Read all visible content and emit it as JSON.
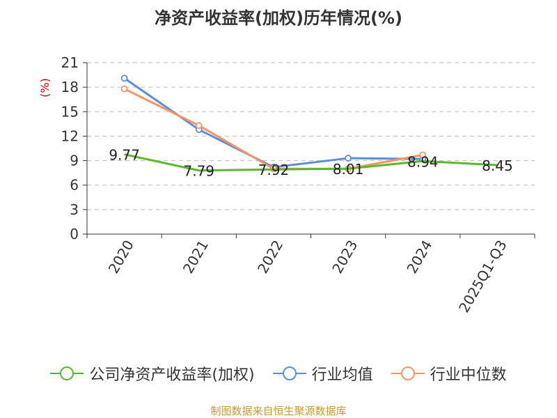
{
  "source_note": "制图数据来自恒生聚源数据库",
  "colors": {
    "company": "#5ab82a",
    "industry_avg": "#5b8ce0",
    "industry_median": "#f59564",
    "axis": "#333333",
    "grid": "#bbbbbb",
    "unit": "#cc0000",
    "source": "#c9982e"
  },
  "chart_data": {
    "type": "line",
    "title": "净资产收益率(加权)历年情况(%)",
    "ylabel": "(%)",
    "categories": [
      "2020",
      "2021",
      "2022",
      "2023",
      "2024",
      "2025Q1-Q3"
    ],
    "ylim": [
      0,
      21
    ],
    "yticks": [
      0,
      3,
      6,
      9,
      12,
      15,
      18,
      21
    ],
    "grid": true,
    "legend_position": "bottom",
    "series": [
      {
        "name": "公司净资产收益率(加权)",
        "color": "#5ab82a",
        "values": [
          9.77,
          7.79,
          7.92,
          8.01,
          8.94,
          8.45
        ],
        "data_labels": [
          "9.77",
          "7.79",
          "7.92",
          "8.01",
          "8.94",
          "8.45"
        ],
        "show_markers": false
      },
      {
        "name": "行业均值",
        "color": "#5b8ce0",
        "values": [
          19.1,
          12.8,
          8.2,
          9.3,
          9.2,
          null
        ],
        "show_markers": true
      },
      {
        "name": "行业中位数",
        "color": "#f59564",
        "values": [
          17.8,
          13.3,
          8.0,
          8.0,
          9.7,
          null
        ],
        "show_markers": true
      }
    ]
  }
}
